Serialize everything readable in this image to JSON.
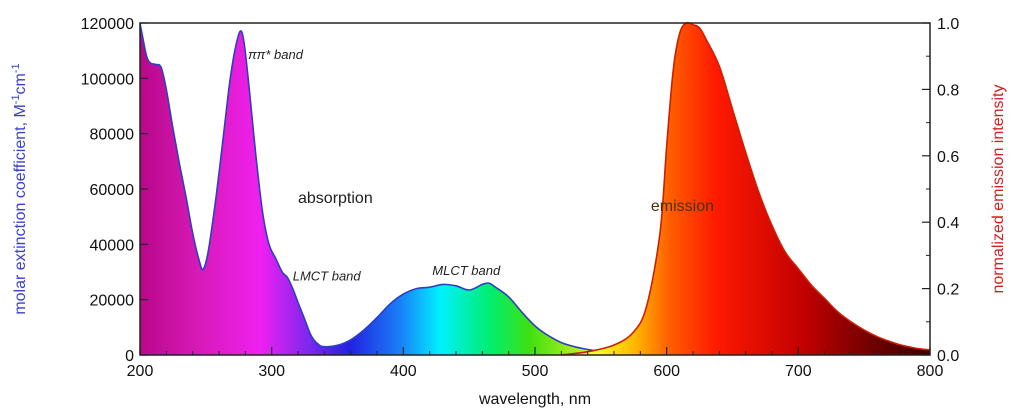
{
  "chart_data": {
    "type": "area",
    "xlabel": "wavelength, nm",
    "ylabel_left": {
      "prefix": "molar extinction coefficient, M",
      "sup1": "-1",
      "mid": "cm",
      "sup2": "-1"
    },
    "ylabel_right": "normalized emission intensity",
    "xlim": [
      200,
      800
    ],
    "ylim_left": [
      0,
      120000
    ],
    "ylim_right": [
      0.0,
      1.0
    ],
    "x_ticks": [
      200,
      300,
      400,
      500,
      600,
      700,
      800
    ],
    "y_ticks_left": [
      0,
      20000,
      40000,
      60000,
      80000,
      100000,
      120000
    ],
    "y_ticks_right": [
      "0.0",
      "0.2",
      "0.4",
      "0.6",
      "0.8",
      "1.0"
    ],
    "annotations": [
      {
        "id": "pipi",
        "text": "ππ* band",
        "x": 282,
        "y": 107000
      },
      {
        "id": "absorption",
        "text": "absorption",
        "x": 320,
        "y": 55000
      },
      {
        "id": "lmct",
        "text": "LMCT band",
        "x": 316,
        "y": 27000
      },
      {
        "id": "mlct",
        "text": "MLCT band",
        "x": 422,
        "y": 29000
      },
      {
        "id": "emission",
        "text": "emission",
        "x": 588,
        "y": 52000
      }
    ],
    "series": [
      {
        "name": "absorption",
        "axis": "left",
        "color": "#2e3fbf",
        "x": [
          200,
          202,
          205,
          208,
          212,
          216,
          220,
          225,
          230,
          235,
          240,
          245,
          248,
          252,
          258,
          264,
          268,
          272,
          276,
          279,
          283,
          288,
          293,
          298,
          303,
          308,
          312,
          316,
          320,
          325,
          330,
          335,
          340,
          350,
          360,
          370,
          380,
          390,
          400,
          410,
          420,
          430,
          440,
          450,
          460,
          465,
          470,
          480,
          490,
          500,
          510,
          520,
          530,
          540,
          550,
          560,
          570,
          580
        ],
        "y": [
          121000,
          115000,
          108000,
          105500,
          105000,
          104000,
          96000,
          82000,
          69000,
          57000,
          44000,
          34000,
          31000,
          38000,
          58000,
          82000,
          98000,
          110000,
          117000,
          113000,
          96000,
          72000,
          52000,
          40000,
          35000,
          30000,
          28000,
          24000,
          19000,
          13000,
          7000,
          4000,
          3000,
          3500,
          5500,
          9000,
          13500,
          18500,
          22000,
          24000,
          24500,
          25500,
          25000,
          23500,
          25500,
          26000,
          24500,
          21000,
          15500,
          10500,
          7000,
          4500,
          3000,
          2000,
          1200,
          700,
          400,
          200
        ]
      },
      {
        "name": "emission",
        "axis": "right",
        "color": "#cc2000",
        "x": [
          520,
          540,
          560,
          575,
          585,
          595,
          600,
          605,
          610,
          615,
          620,
          625,
          630,
          640,
          650,
          660,
          670,
          680,
          690,
          700,
          710,
          720,
          730,
          740,
          750,
          760,
          770,
          780,
          790,
          800
        ],
        "y": [
          0.0,
          0.01,
          0.03,
          0.07,
          0.15,
          0.37,
          0.63,
          0.86,
          0.97,
          1.0,
          0.995,
          0.985,
          0.95,
          0.87,
          0.74,
          0.61,
          0.49,
          0.39,
          0.31,
          0.26,
          0.21,
          0.17,
          0.13,
          0.1,
          0.075,
          0.055,
          0.04,
          0.028,
          0.02,
          0.015
        ]
      }
    ]
  }
}
